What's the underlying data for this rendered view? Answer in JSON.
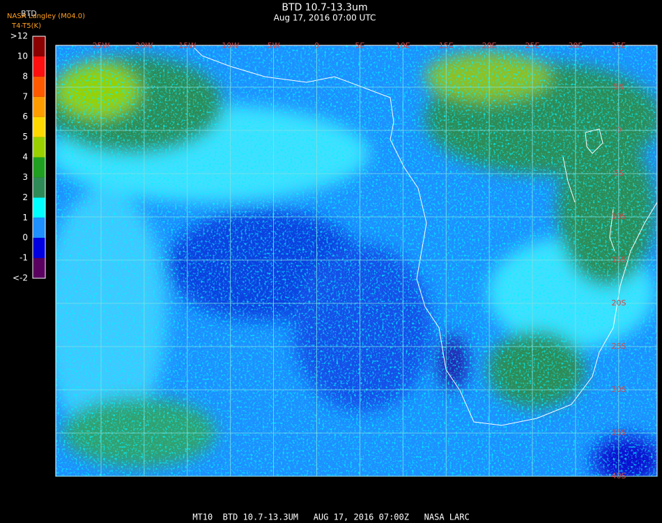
{
  "header": {
    "title": "BTD 10.7-13.3um",
    "subtitle": "Aug 17, 2016 07:00 UTC",
    "source": "NASA Langley (M04.0)",
    "product": "BTD",
    "units": "T4-T5(K)"
  },
  "colorbar": {
    "labels": [
      ">12",
      "10",
      "8",
      "7",
      "6",
      "5",
      "4",
      "3",
      "2",
      "1",
      "0",
      "-1",
      "<-2"
    ],
    "colors": [
      "#8b0000",
      "#ff1010",
      "#ff5a00",
      "#ff9c00",
      "#ffd800",
      "#9ad000",
      "#20a020",
      "#2e8b57",
      "#00ffff",
      "#1e90ff",
      "#0000e0",
      "#5a0060"
    ]
  },
  "map": {
    "lon_labels": [
      "25W",
      "20W",
      "15W",
      "10W",
      "5W",
      "0",
      "5E",
      "10E",
      "15E",
      "20E",
      "25E",
      "30E",
      "35E"
    ],
    "lat_labels": [
      "5N",
      "0",
      "5S",
      "10S",
      "15S",
      "20S",
      "25S",
      "30S",
      "35S",
      "40S"
    ]
  },
  "footer": "MT10  BTD 10.7-13.3UM   AUG 17, 2016 07:00Z   NASA LARC"
}
